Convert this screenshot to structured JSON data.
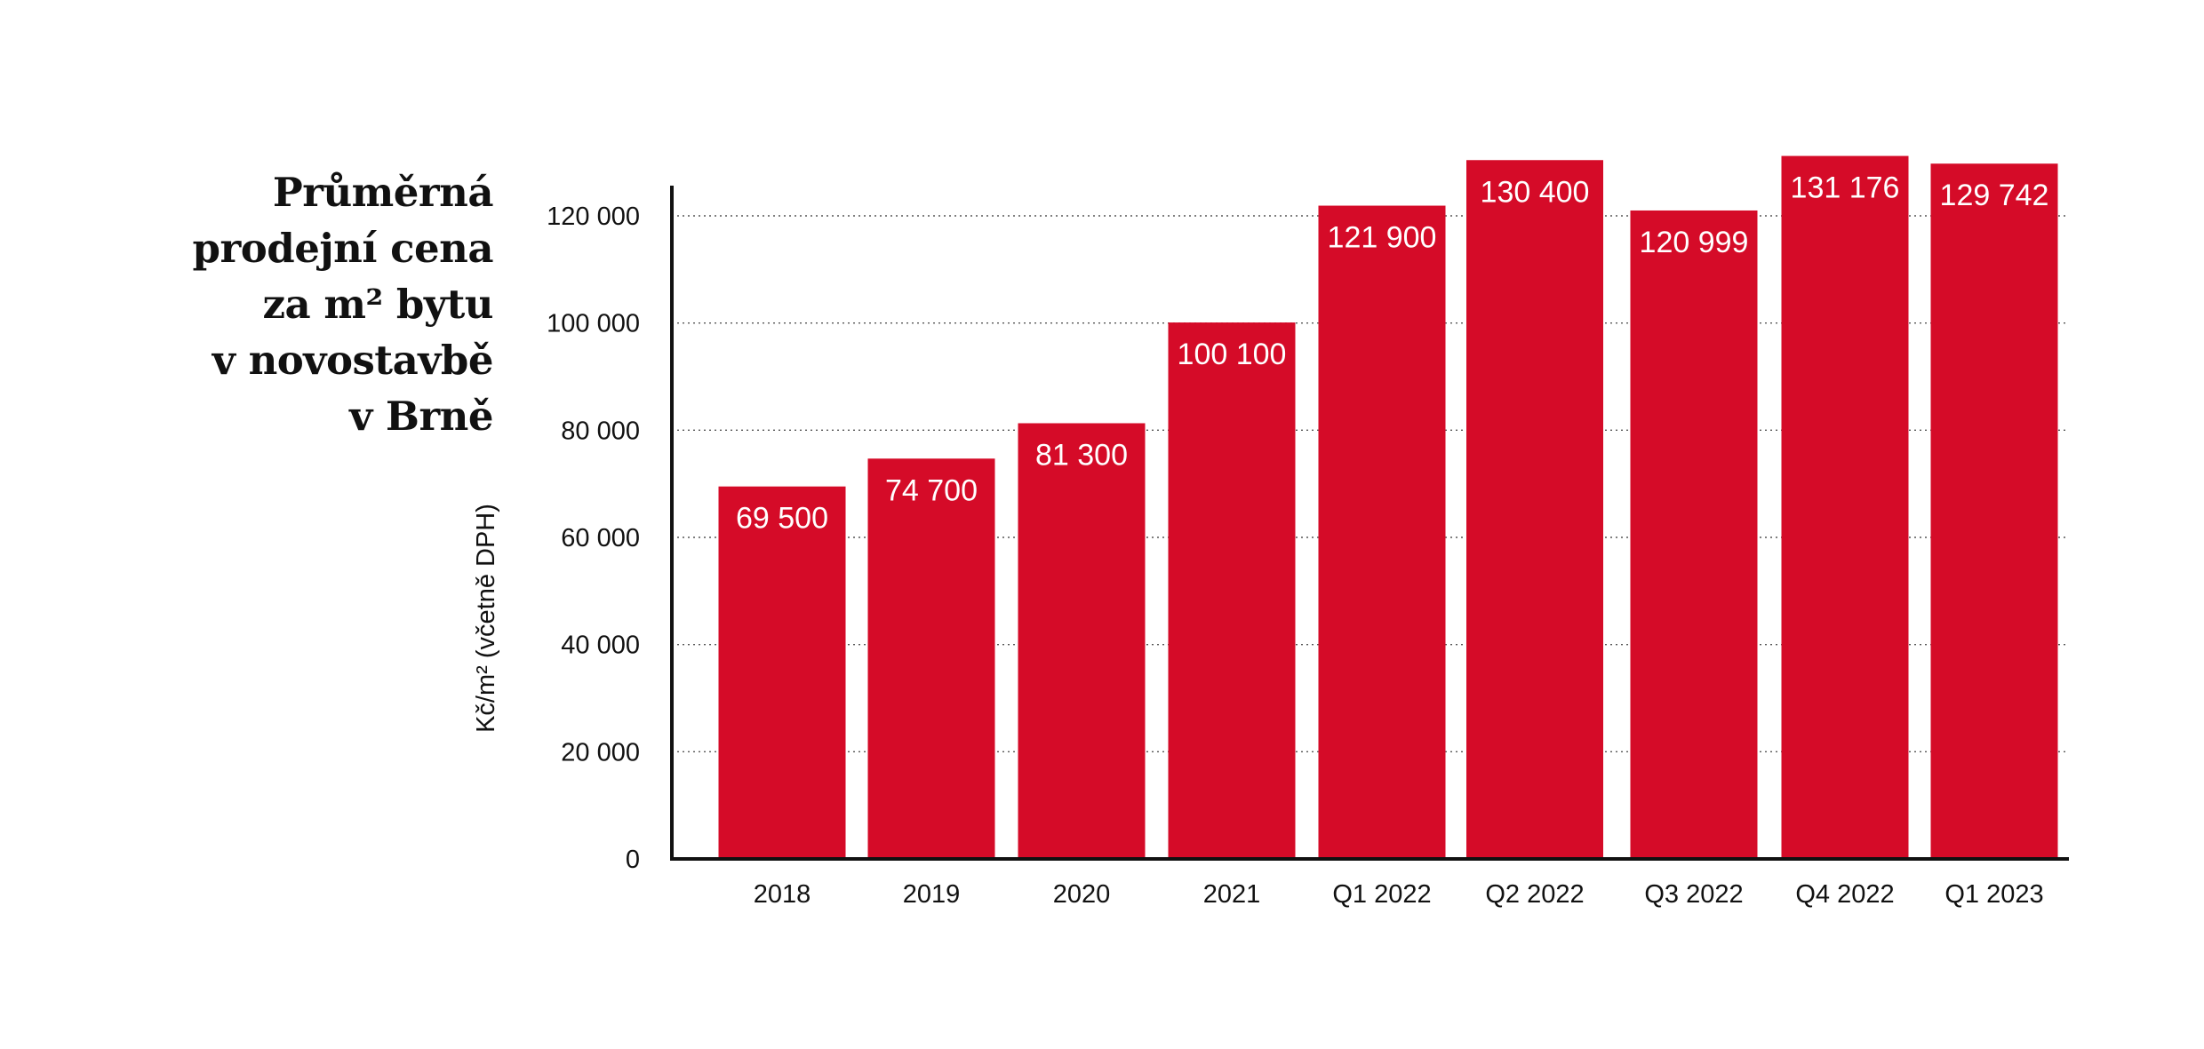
{
  "title_lines": [
    "Průměrná",
    "prodejní cena",
    "za m² bytu",
    "v novostavbě",
    "v Brně"
  ],
  "chart_data": {
    "type": "bar",
    "title": "Průměrná prodejní cena za m² bytu v novostavbě v Brně",
    "xlabel": "",
    "ylabel": "Kč/m² (včetně DPH)",
    "categories": [
      "2018",
      "2019",
      "2020",
      "2021",
      "Q1 2022",
      "Q2 2022",
      "Q3 2022",
      "Q4 2022",
      "Q1 2023"
    ],
    "values": [
      69500,
      74700,
      81300,
      100100,
      121900,
      130400,
      120999,
      131176,
      129742
    ],
    "value_labels": [
      "69 500",
      "74 700",
      "81 300",
      "100 100",
      "121 900",
      "130 400",
      "120 999",
      "131 176",
      "129 742"
    ],
    "yticks": [
      0,
      20000,
      40000,
      60000,
      80000,
      100000,
      120000
    ],
    "ytick_labels": [
      "0",
      "20 000",
      "40 000",
      "60 000",
      "80 000",
      "100 000",
      "120 000"
    ],
    "ylim": [
      0,
      125000
    ],
    "grid": "horizontal dotted",
    "bar_color": "#d50b28"
  }
}
